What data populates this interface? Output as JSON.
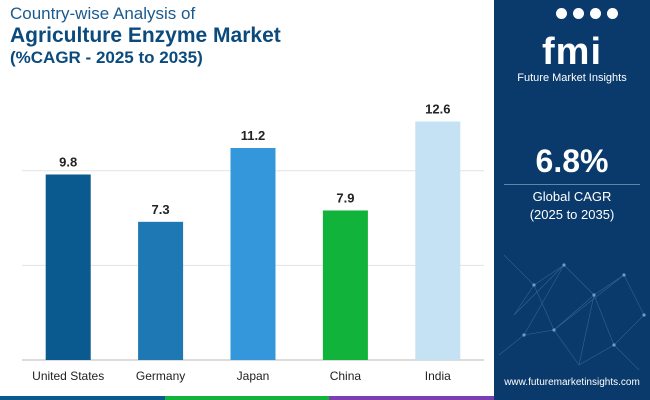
{
  "header": {
    "title_line1": "Country-wise Analysis of",
    "title_line2": "Agriculture Enzyme Market",
    "title_line3": "(%CAGR - 2025 to 2035)"
  },
  "chart_data": {
    "type": "bar",
    "categories": [
      "United States",
      "Germany",
      "Japan",
      "China",
      "India"
    ],
    "values": [
      9.8,
      7.3,
      11.2,
      7.9,
      12.6
    ],
    "bar_colors": [
      "#0b5a8f",
      "#1d78b3",
      "#3497db",
      "#12b33a",
      "#c5e1f4"
    ],
    "ylim": [
      0,
      14
    ],
    "grid": "horizontal",
    "gridline_values": [
      0,
      5,
      10
    ],
    "title": "",
    "xlabel": "",
    "ylabel": ""
  },
  "side_panel": {
    "logo_text": "fmi",
    "logo_subtitle": "Future Market Insights",
    "cagr_value": "6.8%",
    "cagr_label_line1": "Global CAGR",
    "cagr_label_line2": "(2025 to 2035)",
    "website": "www.futuremarketinsights.com",
    "background_color": "#0a3a6b"
  },
  "bottom_bar_colors": [
    "#0b5a8f",
    "#12b33a",
    "#7a3fb0"
  ]
}
